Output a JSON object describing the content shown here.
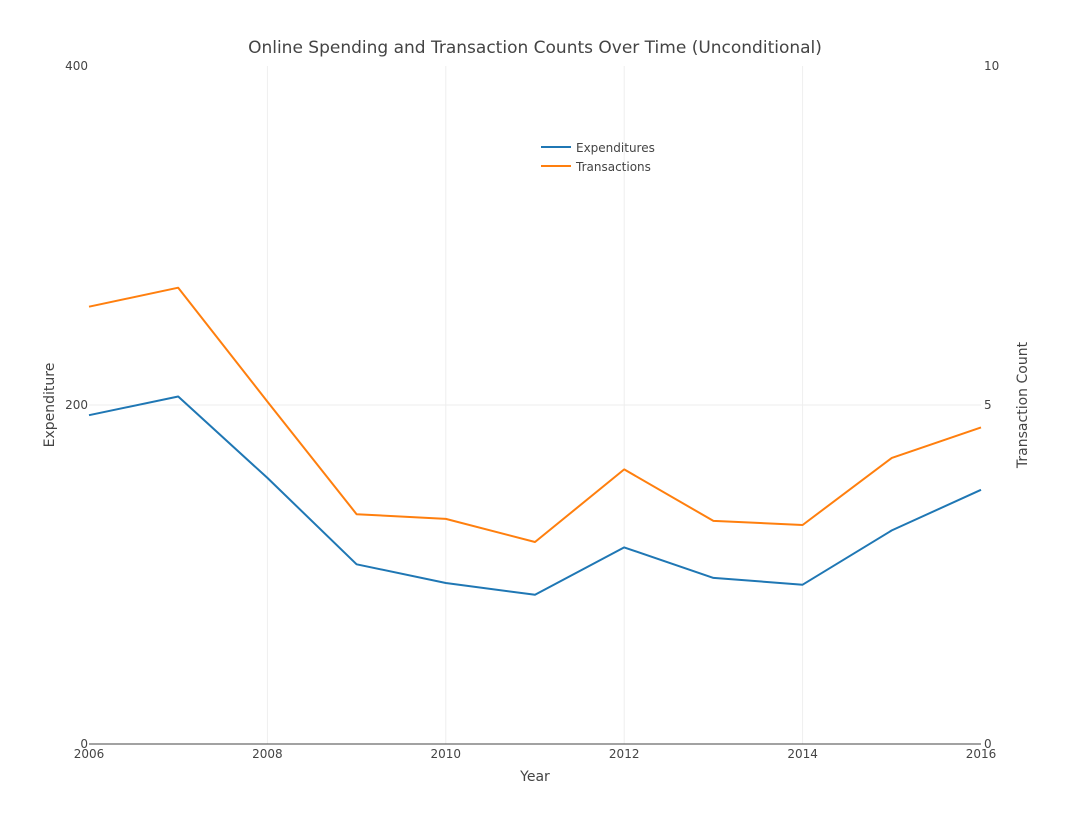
{
  "chart_data": {
    "type": "line",
    "title": "Online Spending and Transaction Counts Over Time (Unconditional)",
    "xlabel": "Year",
    "ylabel": "Expenditure",
    "y2label": "Transaction Count",
    "xlim": [
      2006,
      2016
    ],
    "ylim": [
      0,
      400
    ],
    "y2lim": [
      0,
      10
    ],
    "x_ticks": [
      2006,
      2008,
      2010,
      2012,
      2014,
      2016
    ],
    "y_ticks": [
      0,
      200,
      400
    ],
    "y2_ticks": [
      0,
      5,
      10
    ],
    "grid": true,
    "legend_position": "top-center",
    "x": [
      2006,
      2007,
      2008,
      2009,
      2010,
      2011,
      2012,
      2013,
      2014,
      2015,
      2016
    ],
    "series": [
      {
        "name": "Expenditures",
        "axis": "left",
        "color": "#1f77b4",
        "values": [
          194,
          205,
          157,
          106,
          95,
          88,
          116,
          98,
          94,
          126,
          150
        ]
      },
      {
        "name": "Transactions",
        "axis": "right",
        "color": "#ff7f0e",
        "values": [
          6.45,
          6.73,
          5.05,
          3.39,
          3.32,
          2.98,
          4.05,
          3.29,
          3.23,
          4.22,
          4.67
        ]
      }
    ]
  }
}
